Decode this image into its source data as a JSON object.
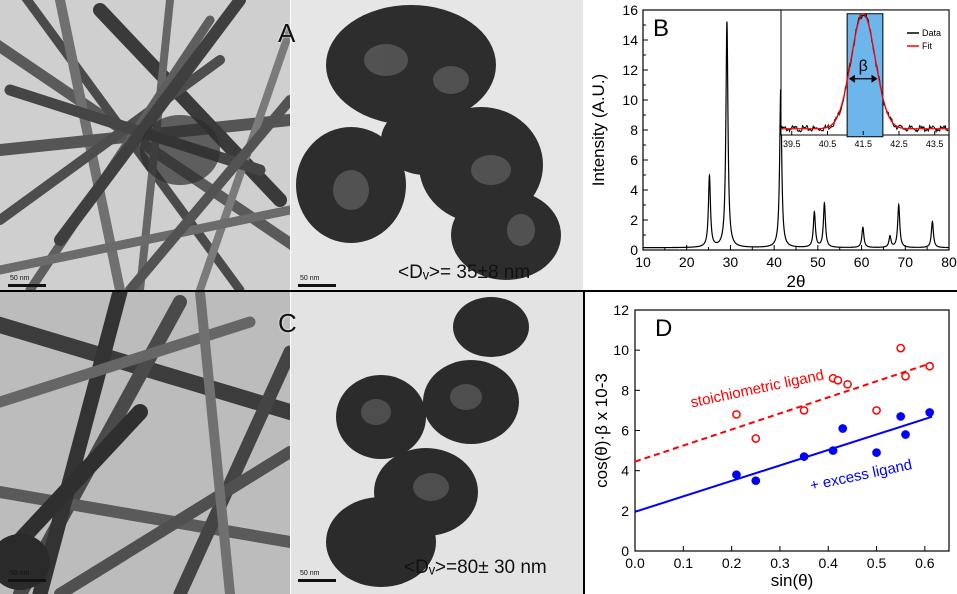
{
  "panels": {
    "A": {
      "letter": "A",
      "scale_left": "50 nm",
      "scale_right": "50 nm",
      "size_label": "<Dᵥ>=  35±8 nm"
    },
    "B": {
      "letter": "B"
    },
    "C": {
      "letter": "C",
      "scale_left": "50 nm",
      "scale_right": "50 nm",
      "size_label": "<Dᵥ>=80± 30 nm"
    },
    "D": {
      "letter": "D"
    }
  },
  "chart_data": [
    {
      "panel": "B",
      "type": "line",
      "xlabel": "2θ",
      "ylabel": "Intensity (A.U.)",
      "xlim": [
        10,
        80
      ],
      "ylim": [
        0,
        16
      ],
      "xticks": [
        "10",
        "20",
        "30",
        "40",
        "50",
        "60",
        "70",
        "80"
      ],
      "yticks": [
        "0",
        "2",
        "4",
        "6",
        "8",
        "10",
        "12",
        "14",
        "16"
      ],
      "peaks": [
        {
          "x": 25.2,
          "y": 4.9
        },
        {
          "x": 29.2,
          "y": 15.2
        },
        {
          "x": 41.5,
          "y": 10.7
        },
        {
          "x": 49.2,
          "y": 2.5
        },
        {
          "x": 51.5,
          "y": 3.1
        },
        {
          "x": 60.3,
          "y": 1.5
        },
        {
          "x": 66.5,
          "y": 0.9
        },
        {
          "x": 68.5,
          "y": 3.0
        },
        {
          "x": 76.2,
          "y": 1.9
        }
      ],
      "baseline": 0.15,
      "color": "#000000"
    },
    {
      "panel": "B-inset",
      "type": "line",
      "xlim": [
        39.2,
        43.9
      ],
      "xticks": [
        "39.5",
        "40.5",
        "41.5",
        "42.5",
        "43.5"
      ],
      "peak_center": 41.5,
      "peak_fwhm": 0.8,
      "highlight_range": [
        41.05,
        42.05
      ],
      "beta_label": "β",
      "legend_position": "top-right",
      "series": [
        {
          "name": "Data",
          "color": "#000000"
        },
        {
          "name": "Fit",
          "color": "#ff0000"
        }
      ]
    },
    {
      "panel": "D",
      "type": "scatter",
      "xlabel": "sin(θ)",
      "ylabel": "cos(θ)·β x 10-3",
      "xlim": [
        0.0,
        0.65
      ],
      "ylim": [
        0,
        12
      ],
      "xticks": [
        "0.0",
        "0.1",
        "0.2",
        "0.3",
        "0.4",
        "0.5",
        "0.6"
      ],
      "yticks": [
        "0",
        "2",
        "4",
        "6",
        "8",
        "10",
        "12"
      ],
      "series": [
        {
          "name": "stoichiometric ligand",
          "color": "#ff0000",
          "marker": "open-circle",
          "line_style": "dashed",
          "fit": {
            "intercept": 4.45,
            "slope": 8.0
          },
          "x": [
            0.21,
            0.25,
            0.35,
            0.41,
            0.42,
            0.44,
            0.5,
            0.55,
            0.56,
            0.61
          ],
          "y": [
            6.8,
            5.6,
            7.0,
            8.6,
            8.5,
            8.3,
            7.0,
            10.1,
            8.7,
            9.2
          ]
        },
        {
          "name": "+ excess ligand",
          "color": "#0000ff",
          "marker": "filled-circle",
          "line_style": "solid",
          "fit": {
            "intercept": 1.95,
            "slope": 7.7
          },
          "x": [
            0.21,
            0.25,
            0.35,
            0.41,
            0.43,
            0.5,
            0.55,
            0.56,
            0.61
          ],
          "y": [
            3.8,
            3.5,
            4.7,
            5.0,
            6.1,
            4.9,
            6.7,
            5.8,
            6.9
          ]
        }
      ]
    }
  ]
}
